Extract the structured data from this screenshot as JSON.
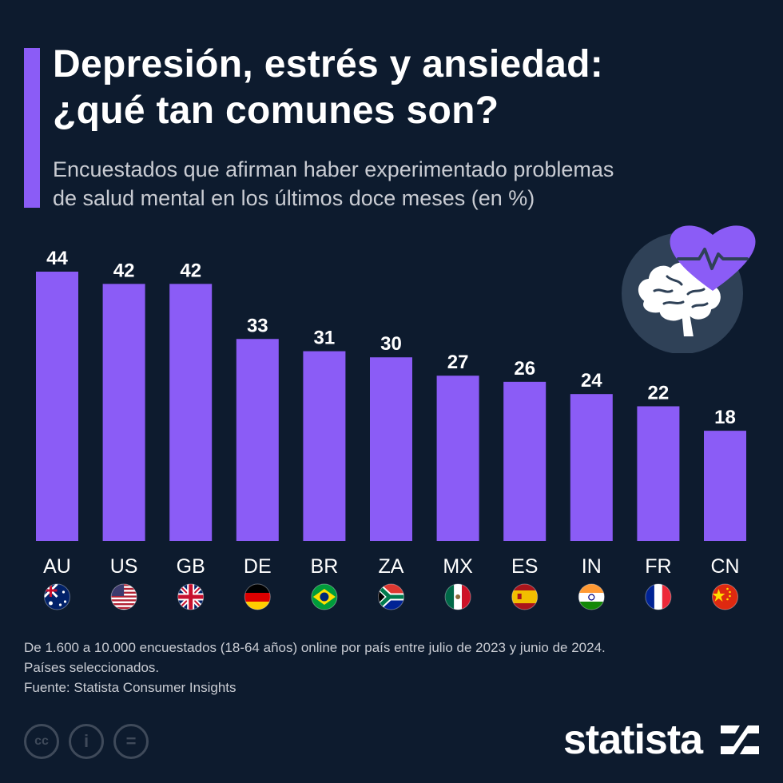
{
  "header": {
    "title_line1": "Depresión, estrés y ansiedad:",
    "title_line2": "¿qué tan comunes son?",
    "subtitle_line1": "Encuestados que afirman haber experimentado problemas",
    "subtitle_line2": "de salud mental en los últimos doce meses (en %)"
  },
  "colors": {
    "background": "#0d1b2e",
    "bar": "#8b5cf6",
    "accent": "#8b5cf6",
    "text": "#ffffff",
    "muted": "#c9ccd3"
  },
  "illustration": {
    "icon": "brain-heart-icon"
  },
  "chart_data": {
    "type": "bar",
    "title": "Depresión, estrés y ansiedad: ¿qué tan comunes son?",
    "ylabel": "%",
    "xlabel": "",
    "ylim": [
      0,
      44
    ],
    "grid": false,
    "categories": [
      "AU",
      "US",
      "GB",
      "DE",
      "BR",
      "ZA",
      "MX",
      "ES",
      "IN",
      "FR",
      "CN"
    ],
    "values": [
      44,
      42,
      42,
      33,
      31,
      30,
      27,
      26,
      24,
      22,
      18
    ],
    "flags": [
      "au-flag-icon",
      "us-flag-icon",
      "gb-flag-icon",
      "de-flag-icon",
      "br-flag-icon",
      "za-flag-icon",
      "mx-flag-icon",
      "es-flag-icon",
      "in-flag-icon",
      "fr-flag-icon",
      "cn-flag-icon"
    ]
  },
  "notes": {
    "line1": "De 1.600 a 10.000 encuestados (18-64 años) online por país entre julio de 2023 y junio de 2024.",
    "line2": "Países seleccionados.",
    "line3": "Fuente: Statista Consumer Insights"
  },
  "license_icons": {
    "cc": "cc",
    "by": "i",
    "nd": "="
  },
  "brand": {
    "name": "statista"
  }
}
